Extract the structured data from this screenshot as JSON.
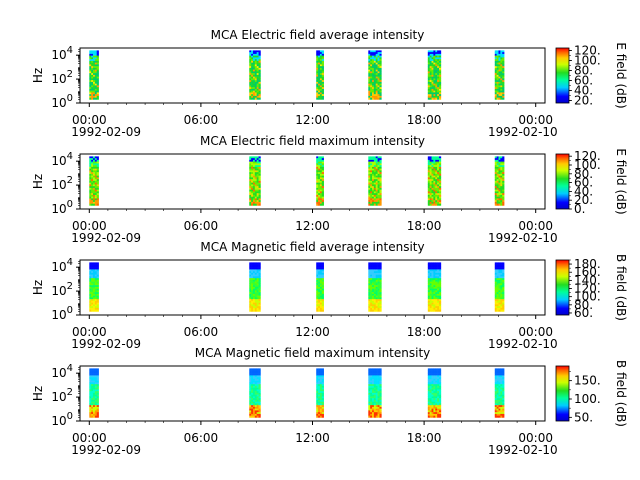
{
  "figure": {
    "x_axis": {
      "tick_labels": [
        "00:00",
        "06:00",
        "12:00",
        "18:00",
        "00:00"
      ],
      "tick_hours": [
        0,
        6,
        12,
        18,
        24
      ],
      "start_date": "1992-02-09",
      "end_date": "1992-02-10",
      "range_hours": [
        -0.5,
        24.5
      ]
    }
  },
  "chart_data": [
    {
      "type": "heatmap",
      "title": "MCA  Electric field average intensity",
      "ylabel": "Hz",
      "ytick_labels": [
        "10^0",
        "10^2",
        "10^4"
      ],
      "ylim_log10": [
        0,
        4.6
      ],
      "colorbar": {
        "label": "E field (dB)",
        "ticks": [
          20,
          40,
          60,
          80,
          100,
          120
        ],
        "range": [
          15,
          125
        ],
        "tick_suffix": "."
      },
      "palette": "E-avg",
      "passes_hours": [
        [
          0.0,
          0.5
        ],
        [
          8.6,
          9.2
        ],
        [
          12.2,
          12.6
        ],
        [
          15.0,
          15.7
        ],
        [
          18.2,
          18.9
        ],
        [
          21.8,
          22.3
        ]
      ]
    },
    {
      "type": "heatmap",
      "title": "MCA  Electric field maximum intensity",
      "ylabel": "Hz",
      "ytick_labels": [
        "10^0",
        "10^2",
        "10^4"
      ],
      "ylim_log10": [
        0,
        4.6
      ],
      "colorbar": {
        "label": "E field (dB)",
        "ticks": [
          0,
          20,
          40,
          60,
          80,
          100,
          120
        ],
        "range": [
          0,
          125
        ],
        "tick_suffix": "."
      },
      "palette": "E-max",
      "passes_hours": [
        [
          0.0,
          0.5
        ],
        [
          8.6,
          9.2
        ],
        [
          12.2,
          12.6
        ],
        [
          15.0,
          15.7
        ],
        [
          18.2,
          18.9
        ],
        [
          21.8,
          22.3
        ]
      ]
    },
    {
      "type": "heatmap",
      "title": "MCA  Magnetic field average intensity",
      "ylabel": "Hz",
      "ytick_labels": [
        "10^0",
        "10^2",
        "10^4"
      ],
      "ylim_log10": [
        0,
        4.6
      ],
      "colorbar": {
        "label": "B field (dB)",
        "ticks": [
          60,
          80,
          100,
          120,
          140,
          160,
          180
        ],
        "range": [
          55,
          190
        ],
        "tick_suffix": "."
      },
      "palette": "B-avg",
      "passes_hours": [
        [
          0.0,
          0.5
        ],
        [
          8.6,
          9.2
        ],
        [
          12.2,
          12.6
        ],
        [
          15.0,
          15.7
        ],
        [
          18.2,
          18.9
        ],
        [
          21.8,
          22.3
        ]
      ]
    },
    {
      "type": "heatmap",
      "title": "MCA  Magnetic field maximum intensity",
      "ylabel": "Hz",
      "ytick_labels": [
        "10^0",
        "10^2",
        "10^4"
      ],
      "ylim_log10": [
        0,
        4.6
      ],
      "colorbar": {
        "label": "B field (dB)",
        "ticks": [
          50,
          100,
          150
        ],
        "range": [
          40,
          190
        ],
        "tick_suffix": "."
      },
      "palette": "B-max",
      "passes_hours": [
        [
          0.0,
          0.5
        ],
        [
          8.6,
          9.2
        ],
        [
          12.2,
          12.6
        ],
        [
          15.0,
          15.7
        ],
        [
          18.2,
          18.9
        ],
        [
          21.8,
          22.3
        ]
      ]
    }
  ]
}
